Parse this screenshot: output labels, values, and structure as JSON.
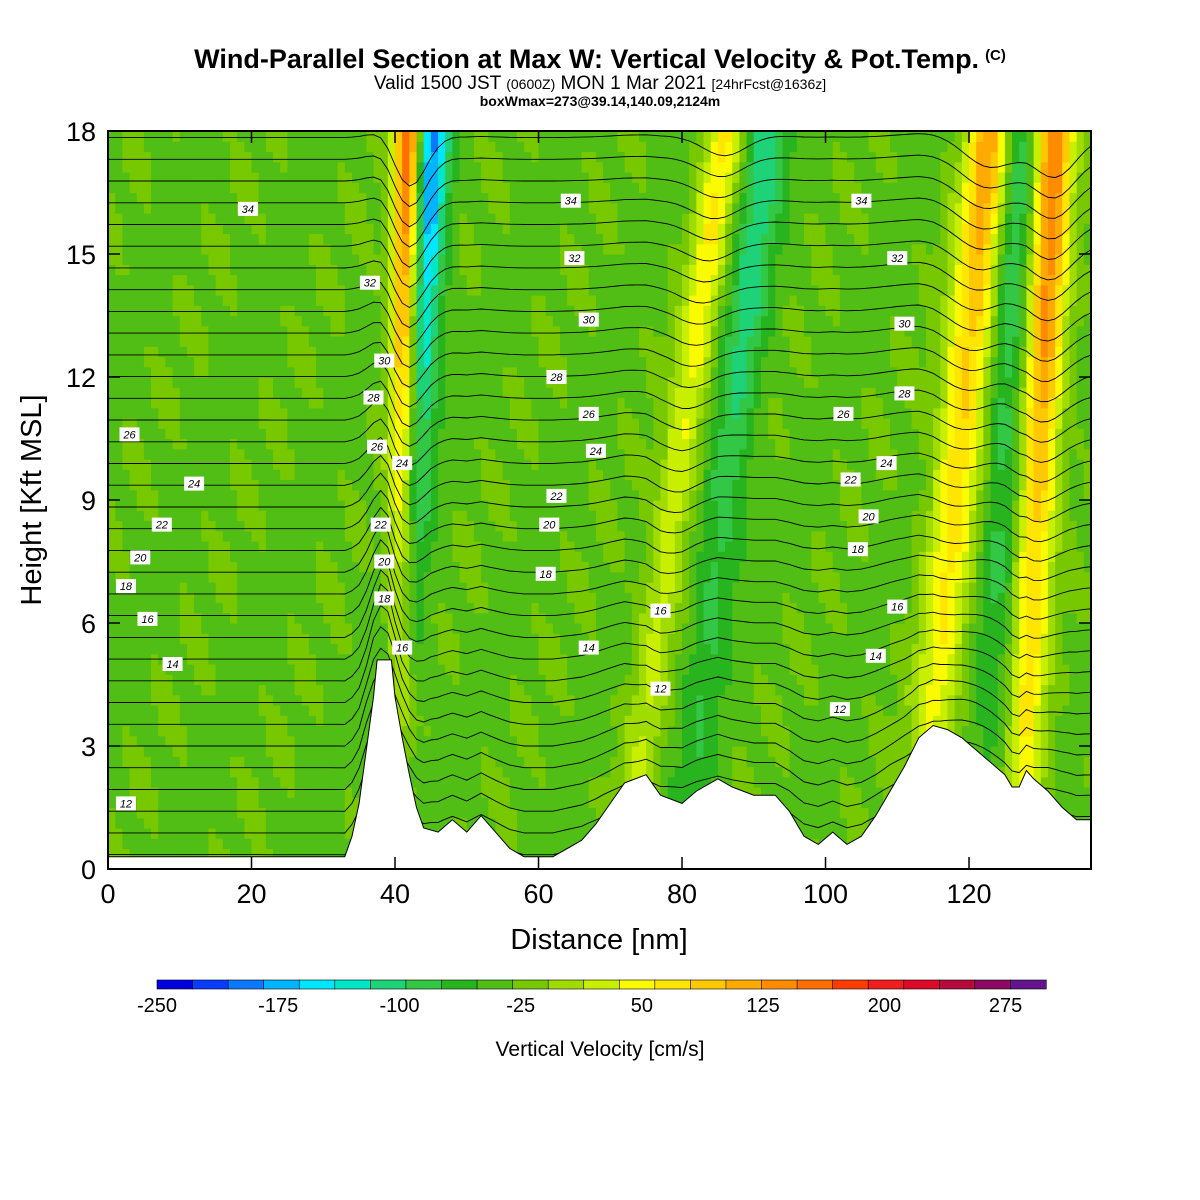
{
  "header": {
    "title": "Wind-Parallel Section at Max W: Vertical Velocity & Pot.Temp.",
    "copyright_mark": "(C)",
    "subtitle_prefix": "Valid 1500 JST",
    "subtitle_utc": "(0600Z)",
    "subtitle_date": "MON 1 Mar 2021",
    "subtitle_forecast": "[24hrFcst@1636z]",
    "boxline": "boxWmax=273@39.14,140.09,2124m"
  },
  "chart_data": {
    "type": "heatmap",
    "xlabel": "Distance [nm]",
    "ylabel": "Height [Kft MSL]",
    "xlim": [
      0,
      137
    ],
    "ylim": [
      0,
      18
    ],
    "xticks": [
      0,
      20,
      40,
      60,
      80,
      100,
      120
    ],
    "yticks": [
      0,
      3,
      6,
      9,
      12,
      15,
      18
    ],
    "colorbar": {
      "label": "Vertical Velocity [cm/s]",
      "tick_labels": [
        "-250",
        "-175",
        "-100",
        "-25",
        "50",
        "125",
        "200",
        "275"
      ],
      "min": -250,
      "max": 300,
      "step": 25,
      "colors": [
        "#0000e0",
        "#0a3cff",
        "#0a78ff",
        "#00b4ff",
        "#00e6ff",
        "#00e6c8",
        "#1ed278",
        "#32c846",
        "#28b41e",
        "#50be14",
        "#78c800",
        "#a0dc00",
        "#c8ee00",
        "#fafa00",
        "#ffe600",
        "#ffc800",
        "#ffaa00",
        "#ff8c00",
        "#ff6e00",
        "#ff3c00",
        "#f01e1e",
        "#dc0a28",
        "#b40a3c",
        "#8c0a64",
        "#64148c"
      ]
    },
    "terrain_kft": [
      [
        0,
        0.3
      ],
      [
        33,
        0.3
      ],
      [
        34,
        0.8
      ],
      [
        35,
        1.6
      ],
      [
        36,
        2.9
      ],
      [
        37,
        4.2
      ],
      [
        37.5,
        5.1
      ],
      [
        39.5,
        5.1
      ],
      [
        40,
        4.2
      ],
      [
        41,
        3.2
      ],
      [
        42,
        2.3
      ],
      [
        43,
        1.5
      ],
      [
        44,
        1.0
      ],
      [
        46,
        0.9
      ],
      [
        48,
        1.2
      ],
      [
        50,
        0.9
      ],
      [
        52,
        1.3
      ],
      [
        54,
        0.9
      ],
      [
        56,
        0.5
      ],
      [
        58,
        0.3
      ],
      [
        62,
        0.3
      ],
      [
        66,
        0.7
      ],
      [
        68,
        1.1
      ],
      [
        70,
        1.6
      ],
      [
        72,
        2.1
      ],
      [
        75,
        2.3
      ],
      [
        77,
        1.8
      ],
      [
        80,
        1.6
      ],
      [
        82,
        1.9
      ],
      [
        85,
        2.2
      ],
      [
        87,
        2.0
      ],
      [
        90,
        1.8
      ],
      [
        93,
        1.8
      ],
      [
        95,
        1.4
      ],
      [
        97,
        0.8
      ],
      [
        99,
        0.6
      ],
      [
        101,
        0.9
      ],
      [
        103,
        0.6
      ],
      [
        105,
        0.8
      ],
      [
        107,
        1.3
      ],
      [
        109,
        1.9
      ],
      [
        111,
        2.5
      ],
      [
        113,
        3.2
      ],
      [
        115,
        3.5
      ],
      [
        117,
        3.4
      ],
      [
        119,
        3.2
      ],
      [
        121,
        2.9
      ],
      [
        123,
        2.6
      ],
      [
        125,
        2.3
      ],
      [
        126,
        2.0
      ],
      [
        127,
        2.0
      ],
      [
        128,
        2.4
      ],
      [
        129,
        2.2
      ],
      [
        131,
        1.9
      ],
      [
        133,
        1.5
      ],
      [
        135,
        1.2
      ],
      [
        137,
        1.2
      ]
    ],
    "updraft_plumes": [
      {
        "x_top": 42,
        "x_base": 40,
        "width_nm": 2.0,
        "w_peak": 273
      },
      {
        "x_top": 86,
        "x_base": 72,
        "width_nm": 2.6,
        "w_peak": 110
      },
      {
        "x_top": 123,
        "x_base": 113,
        "width_nm": 3.2,
        "w_peak": 175
      },
      {
        "x_top": 132,
        "x_base": 127,
        "width_nm": 2.6,
        "w_peak": 215
      }
    ],
    "downdraft_plumes": [
      {
        "x_top": 45,
        "x_base": 39,
        "width_nm": 2.6,
        "w_peak": -200
      },
      {
        "x_top": 92,
        "x_base": 80,
        "width_nm": 3.0,
        "w_peak": -95
      },
      {
        "x_top": 127,
        "x_base": 122,
        "width_nm": 2.6,
        "w_peak": -85
      }
    ],
    "isentrope_labels": [
      {
        "x": 19.5,
        "y": 16.1,
        "value": "34"
      },
      {
        "x": 64.5,
        "y": 16.3,
        "value": "34"
      },
      {
        "x": 105,
        "y": 16.3,
        "value": "34"
      },
      {
        "x": 36.5,
        "y": 14.3,
        "value": "32"
      },
      {
        "x": 65,
        "y": 14.9,
        "value": "32"
      },
      {
        "x": 110,
        "y": 14.9,
        "value": "32"
      },
      {
        "x": 38.5,
        "y": 12.4,
        "value": "30"
      },
      {
        "x": 67,
        "y": 13.4,
        "value": "30"
      },
      {
        "x": 111,
        "y": 13.3,
        "value": "30"
      },
      {
        "x": 37,
        "y": 11.5,
        "value": "28"
      },
      {
        "x": 62.5,
        "y": 12.0,
        "value": "28"
      },
      {
        "x": 111,
        "y": 11.6,
        "value": "28"
      },
      {
        "x": 3,
        "y": 10.6,
        "value": "26"
      },
      {
        "x": 37.5,
        "y": 10.3,
        "value": "26"
      },
      {
        "x": 67,
        "y": 11.1,
        "value": "26"
      },
      {
        "x": 102.5,
        "y": 11.1,
        "value": "26"
      },
      {
        "x": 12,
        "y": 9.4,
        "value": "24"
      },
      {
        "x": 41,
        "y": 9.9,
        "value": "24"
      },
      {
        "x": 68,
        "y": 10.2,
        "value": "24"
      },
      {
        "x": 108.5,
        "y": 9.9,
        "value": "24"
      },
      {
        "x": 7.5,
        "y": 8.4,
        "value": "22"
      },
      {
        "x": 38,
        "y": 8.4,
        "value": "22"
      },
      {
        "x": 62.5,
        "y": 9.1,
        "value": "22"
      },
      {
        "x": 103.5,
        "y": 9.5,
        "value": "22"
      },
      {
        "x": 4.5,
        "y": 7.6,
        "value": "20"
      },
      {
        "x": 38.5,
        "y": 7.5,
        "value": "20"
      },
      {
        "x": 61.5,
        "y": 8.4,
        "value": "20"
      },
      {
        "x": 106,
        "y": 8.6,
        "value": "20"
      },
      {
        "x": 2.5,
        "y": 6.9,
        "value": "18"
      },
      {
        "x": 38.5,
        "y": 6.6,
        "value": "18"
      },
      {
        "x": 61,
        "y": 7.2,
        "value": "18"
      },
      {
        "x": 104.5,
        "y": 7.8,
        "value": "18"
      },
      {
        "x": 5.5,
        "y": 6.1,
        "value": "16"
      },
      {
        "x": 41,
        "y": 5.4,
        "value": "16"
      },
      {
        "x": 77,
        "y": 6.3,
        "value": "16"
      },
      {
        "x": 110,
        "y": 6.4,
        "value": "16"
      },
      {
        "x": 9,
        "y": 5.0,
        "value": "14"
      },
      {
        "x": 67,
        "y": 5.4,
        "value": "14"
      },
      {
        "x": 107,
        "y": 5.2,
        "value": "14"
      },
      {
        "x": 77,
        "y": 4.4,
        "value": "12"
      },
      {
        "x": 102,
        "y": 3.9,
        "value": "12"
      },
      {
        "x": 2.5,
        "y": 1.6,
        "value": "12"
      }
    ]
  }
}
